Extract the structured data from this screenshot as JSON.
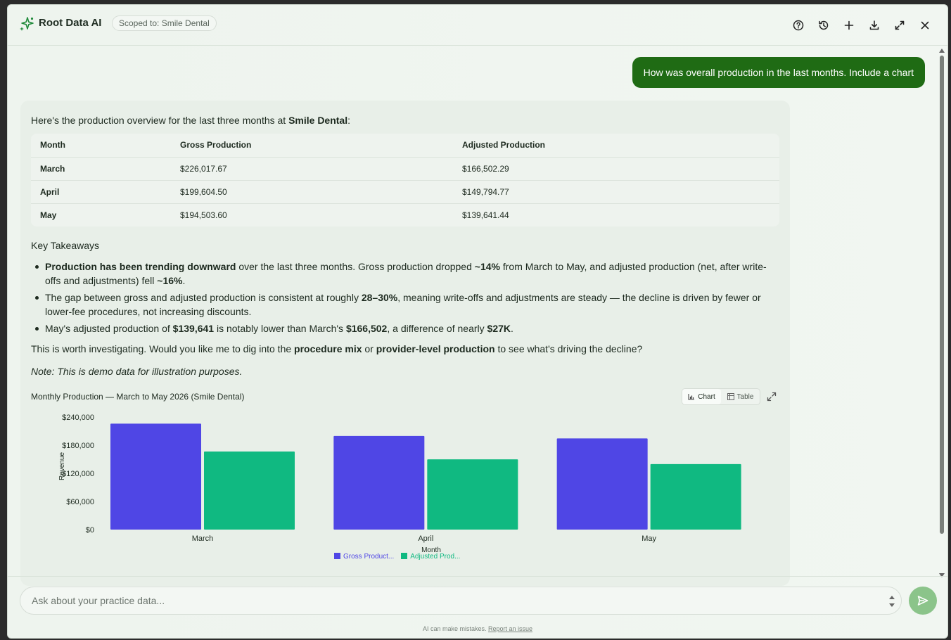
{
  "header": {
    "title": "Root Data AI",
    "scope": "Scoped to: Smile Dental",
    "buttons": [
      "help-icon",
      "history-icon",
      "plus-icon",
      "download-icon",
      "expand-icon",
      "close-icon"
    ]
  },
  "conversation": {
    "user_message": "How was overall production in the last months. Include a chart",
    "intro_prefix": "Here's the production overview for the last three months at ",
    "intro_practice": "Smile Dental",
    "intro_suffix": ":",
    "table": {
      "headers": [
        "Month",
        "Gross Production",
        "Adjusted Production"
      ],
      "rows": [
        [
          "March",
          "$226,017.67",
          "$166,502.29"
        ],
        [
          "April",
          "$199,604.50",
          "$149,794.77"
        ],
        [
          "May",
          "$194,503.60",
          "$139,641.44"
        ]
      ]
    },
    "takeaways_title": "Key Takeaways",
    "takeaways": [
      {
        "b1": "Production has been trending downward",
        "t1": " over the last three months. Gross production dropped ",
        "b2": "~14%",
        "t2": " from March to May, and adjusted production (net, after write-offs and adjustments) fell ",
        "b3": "~16%",
        "t3": "."
      },
      {
        "t1": "The gap between gross and adjusted production is consistent at roughly ",
        "b1": "28–30%",
        "t2": ", meaning write-offs and adjustments are steady — the decline is driven by fewer or lower-fee procedures, not increasing discounts."
      },
      {
        "t1": "May's adjusted production of ",
        "b1": "$139,641",
        "t2": " is notably lower than March's ",
        "b2": "$166,502",
        "t3": ", a difference of nearly ",
        "b3": "$27K",
        "t4": "."
      }
    ],
    "followup": {
      "t1": "This is worth investigating. Would you like me to dig into the ",
      "b1": "procedure mix",
      "t2": " or ",
      "b2": "provider-level production",
      "t3": " to see what's driving the decline?"
    },
    "note": "Note: This is demo data for illustration purposes."
  },
  "chart_toggle": {
    "chart_label": "Chart",
    "table_label": "Table"
  },
  "chart_data": {
    "type": "bar",
    "title": "Monthly Production — March to May 2026 (Smile Dental)",
    "categories": [
      "March",
      "April",
      "May"
    ],
    "series": [
      {
        "name": "Gross Product...",
        "color": "#4f46e5",
        "values": [
          226017.67,
          199604.5,
          194503.6
        ]
      },
      {
        "name": "Adjusted Prod...",
        "color": "#10b981",
        "values": [
          166502.29,
          149794.77,
          139641.44
        ]
      }
    ],
    "xlabel": "Month",
    "ylabel": "Revenue",
    "ylim": [
      0,
      240000
    ],
    "yticks": [
      "$0",
      "$60,000",
      "$120,000",
      "$180,000",
      "$240,000"
    ],
    "ytick_values": [
      0,
      60000,
      120000,
      180000,
      240000
    ],
    "legend": "bottom"
  },
  "composer": {
    "placeholder": "Ask about your practice data...",
    "disclaimer": "AI can make mistakes.",
    "report_link": "Report an issue"
  }
}
